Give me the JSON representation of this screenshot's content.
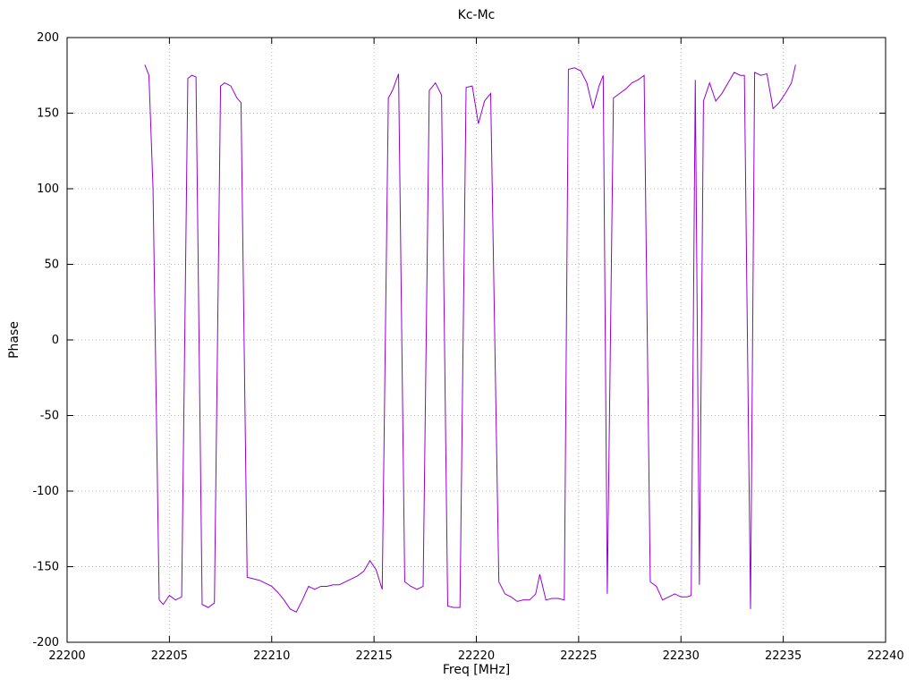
{
  "chart_data": {
    "type": "line",
    "title": "Kc-Mc",
    "xlabel": "Freq [MHz]",
    "ylabel": "Phase",
    "xlim": [
      22200,
      22240
    ],
    "ylim": [
      -200,
      200
    ],
    "xticks": [
      22200,
      22205,
      22210,
      22215,
      22220,
      22225,
      22230,
      22235,
      22240
    ],
    "yticks": [
      -200,
      -150,
      -100,
      -50,
      0,
      50,
      100,
      150,
      200
    ],
    "grid": "dotted",
    "grid_color": "#b8b8b8",
    "border_color": "#000000",
    "legend": "none",
    "series": [
      {
        "name": "Kc-Mc phase",
        "color": "#9400d3",
        "points": [
          [
            22203.8,
            182
          ],
          [
            22204.0,
            175
          ],
          [
            22204.2,
            100
          ],
          [
            22204.5,
            -172
          ],
          [
            22204.7,
            -175
          ],
          [
            22205.0,
            -169
          ],
          [
            22205.3,
            -172
          ],
          [
            22205.6,
            -170
          ],
          [
            22205.9,
            173
          ],
          [
            22206.1,
            175
          ],
          [
            22206.3,
            174
          ],
          [
            22206.6,
            -175
          ],
          [
            22206.9,
            -177
          ],
          [
            22207.2,
            -174
          ],
          [
            22207.5,
            168
          ],
          [
            22207.7,
            170
          ],
          [
            22208.0,
            168
          ],
          [
            22208.3,
            160
          ],
          [
            22208.5,
            157
          ],
          [
            22208.8,
            -157
          ],
          [
            22209.1,
            -158
          ],
          [
            22209.4,
            -159
          ],
          [
            22209.7,
            -161
          ],
          [
            22210.0,
            -163
          ],
          [
            22210.3,
            -167
          ],
          [
            22210.6,
            -172
          ],
          [
            22210.9,
            -178
          ],
          [
            22211.2,
            -180
          ],
          [
            22211.5,
            -172
          ],
          [
            22211.8,
            -163
          ],
          [
            22212.1,
            -165
          ],
          [
            22212.4,
            -163
          ],
          [
            22212.7,
            -163
          ],
          [
            22213.0,
            -162
          ],
          [
            22213.3,
            -162
          ],
          [
            22213.6,
            -160
          ],
          [
            22213.9,
            -158
          ],
          [
            22214.2,
            -156
          ],
          [
            22214.5,
            -153
          ],
          [
            22214.8,
            -146
          ],
          [
            22215.1,
            -152
          ],
          [
            22215.4,
            -165
          ],
          [
            22215.7,
            160
          ],
          [
            22215.9,
            165
          ],
          [
            22216.2,
            176
          ],
          [
            22216.5,
            -160
          ],
          [
            22216.8,
            -163
          ],
          [
            22217.1,
            -165
          ],
          [
            22217.4,
            -163
          ],
          [
            22217.7,
            165
          ],
          [
            22218.0,
            170
          ],
          [
            22218.3,
            162
          ],
          [
            22218.6,
            -176
          ],
          [
            22218.9,
            -177
          ],
          [
            22219.2,
            -177
          ],
          [
            22219.5,
            167
          ],
          [
            22219.8,
            168
          ],
          [
            22220.1,
            143
          ],
          [
            22220.4,
            158
          ],
          [
            22220.7,
            163
          ],
          [
            22221.1,
            -160
          ],
          [
            22221.4,
            -168
          ],
          [
            22221.7,
            -170
          ],
          [
            22222.0,
            -173
          ],
          [
            22222.3,
            -172
          ],
          [
            22222.6,
            -172
          ],
          [
            22222.9,
            -168
          ],
          [
            22223.1,
            -155
          ],
          [
            22223.4,
            -172
          ],
          [
            22223.7,
            -171
          ],
          [
            22224.0,
            -171
          ],
          [
            22224.3,
            -172
          ],
          [
            22224.5,
            179
          ],
          [
            22224.8,
            180
          ],
          [
            22225.1,
            178
          ],
          [
            22225.4,
            170
          ],
          [
            22225.7,
            153
          ],
          [
            22226.0,
            168
          ],
          [
            22226.2,
            175
          ],
          [
            22226.4,
            -168
          ],
          [
            22226.7,
            160
          ],
          [
            22227.0,
            163
          ],
          [
            22227.3,
            166
          ],
          [
            22227.6,
            170
          ],
          [
            22227.9,
            172
          ],
          [
            22228.2,
            175
          ],
          [
            22228.5,
            -160
          ],
          [
            22228.8,
            -163
          ],
          [
            22229.1,
            -172
          ],
          [
            22229.4,
            -170
          ],
          [
            22229.7,
            -168
          ],
          [
            22230.0,
            -170
          ],
          [
            22230.3,
            -170
          ],
          [
            22230.5,
            -169
          ],
          [
            22230.7,
            172
          ],
          [
            22230.9,
            -162
          ],
          [
            22231.1,
            158
          ],
          [
            22231.4,
            170
          ],
          [
            22231.7,
            158
          ],
          [
            22232.0,
            163
          ],
          [
            22232.3,
            170
          ],
          [
            22232.6,
            177
          ],
          [
            22232.9,
            175
          ],
          [
            22233.1,
            175
          ],
          [
            22233.4,
            -178
          ],
          [
            22233.6,
            177
          ],
          [
            22233.9,
            175
          ],
          [
            22234.2,
            176
          ],
          [
            22234.5,
            153
          ],
          [
            22234.8,
            157
          ],
          [
            22235.1,
            163
          ],
          [
            22235.4,
            170
          ],
          [
            22235.6,
            182
          ]
        ]
      }
    ]
  }
}
